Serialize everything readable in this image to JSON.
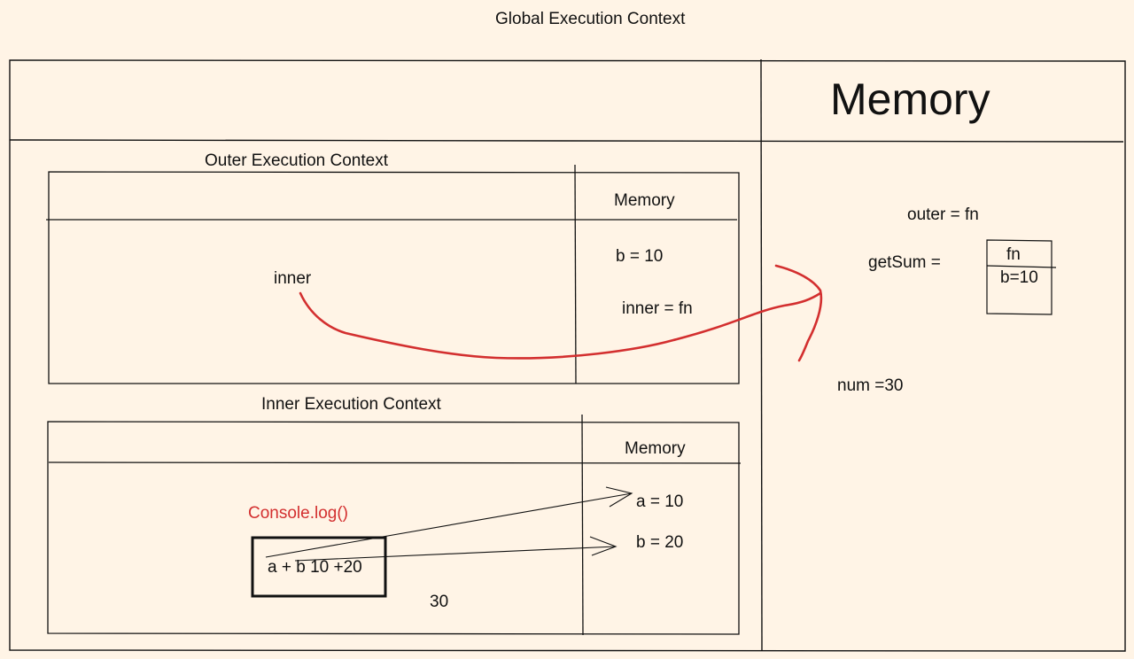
{
  "global": {
    "title": "Global Execution Context",
    "memory_title": "Memory"
  },
  "global_memory": {
    "outer": "outer = fn",
    "getsum": "getSum =",
    "fn_box_top": "fn",
    "fn_box_bottom": "b=10",
    "num": "num =30"
  },
  "outer": {
    "title": "Outer Execution Context",
    "memory_title": "Memory",
    "code_label": "inner",
    "mem_b": "b = 10",
    "mem_inner": "inner = fn"
  },
  "inner": {
    "title": "Inner Execution Context",
    "memory_title": "Memory",
    "console": "Console.log()",
    "expression": "a + b  10 +20",
    "result": "30",
    "mem_a": "a = 10",
    "mem_b": "b = 20"
  },
  "colors": {
    "background": "#fff4e6",
    "stroke": "#111111",
    "accent": "#d32f2f"
  }
}
